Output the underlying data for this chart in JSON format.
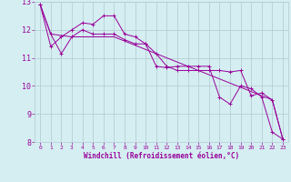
{
  "xlabel": "Windchill (Refroidissement éolien,°C)",
  "x": [
    0,
    1,
    2,
    3,
    4,
    5,
    6,
    7,
    8,
    9,
    10,
    11,
    12,
    13,
    14,
    15,
    16,
    17,
    18,
    19,
    20,
    21,
    22,
    23
  ],
  "line1": [
    12.9,
    11.85,
    11.8,
    11.75,
    11.75,
    11.75,
    11.75,
    11.75,
    11.6,
    11.45,
    11.3,
    11.15,
    11.0,
    10.85,
    10.7,
    10.55,
    10.4,
    10.25,
    10.1,
    9.95,
    9.8,
    9.65,
    9.5,
    8.1
  ],
  "line2": [
    12.9,
    11.85,
    11.15,
    11.75,
    12.0,
    11.85,
    11.85,
    11.85,
    11.65,
    11.5,
    11.5,
    11.15,
    10.7,
    10.55,
    10.55,
    10.55,
    10.55,
    10.55,
    10.5,
    10.55,
    9.65,
    9.75,
    9.5,
    8.1
  ],
  "line3": [
    12.9,
    11.4,
    11.75,
    12.0,
    12.25,
    12.2,
    12.5,
    12.5,
    11.85,
    11.75,
    11.5,
    10.7,
    10.65,
    10.7,
    10.7,
    10.7,
    10.7,
    9.6,
    9.35,
    10.0,
    9.9,
    9.6,
    8.35,
    8.1
  ],
  "bg_color": "#d5eef2",
  "grid_color": "#b5cfd5",
  "line_color": "#990099",
  "ylim": [
    8,
    13
  ],
  "xlim": [
    -0.5,
    23.5
  ],
  "yticks": [
    8,
    9,
    10,
    11,
    12,
    13
  ],
  "xticks": [
    0,
    1,
    2,
    3,
    4,
    5,
    6,
    7,
    8,
    9,
    10,
    11,
    12,
    13,
    14,
    15,
    16,
    17,
    18,
    19,
    20,
    21,
    22,
    23
  ]
}
